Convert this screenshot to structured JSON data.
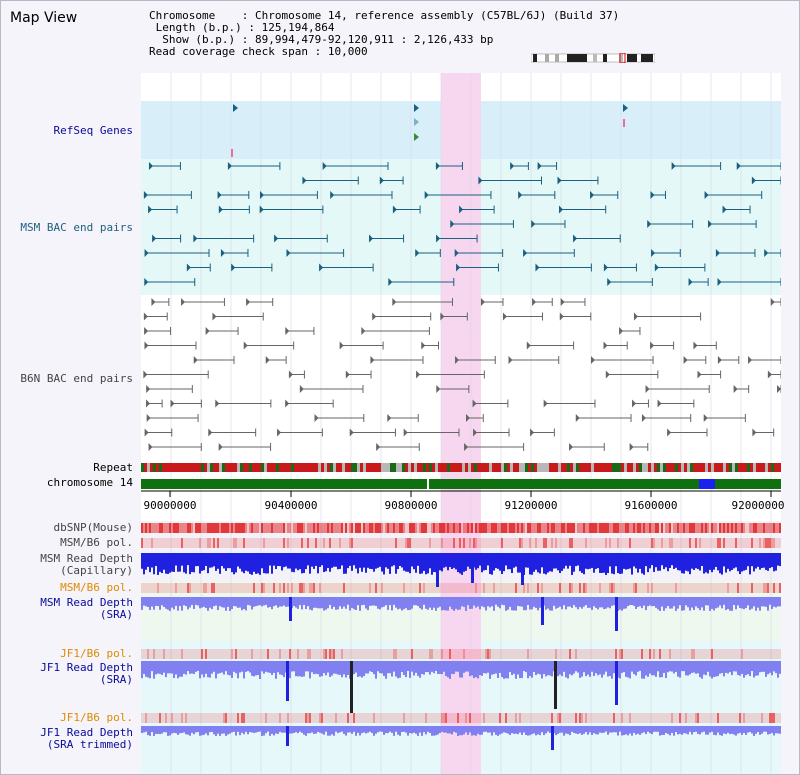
{
  "view_title": "Map View",
  "info": {
    "chromosome_key": "Chromosome",
    "chromosome_val": "Chromosome 14, reference assembly (C57BL/6J) (Build 37)",
    "length_key": "Length (b.p.)",
    "length_val": "125,194,864",
    "show_key": "Show (b.p.)",
    "show_val": "89,994,479-92,120,911 : 2,126,433 bp",
    "coverage_key": "Read coverage check span",
    "coverage_val": "10,000"
  },
  "tracks": {
    "refseq": "RefSeq Genes",
    "msm_bac": "MSM BAC end pairs",
    "b6n_bac": "B6N BAC end pairs",
    "repeat": "Repeat",
    "chromosome": "chromosome 14",
    "dbsnp": "dbSNP(Mouse)",
    "msm_b6_pol_1": "MSM/B6 pol.",
    "msm_read_depth_cap_1": "MSM Read Depth",
    "msm_read_depth_cap_2": "(Capillary)",
    "msm_b6_pol_2": "MSM/B6 pol.",
    "msm_read_depth_sra_1": "MSM Read Depth",
    "msm_read_depth_sra_2": "(SRA)",
    "jf1_b6_pol_1": "JF1/B6 pol.",
    "jf1_read_depth_sra_1": "JF1 Read Depth",
    "jf1_read_depth_sra_2": "(SRA)",
    "jf1_b6_pol_2": "JF1/B6 pol.",
    "jf1_read_depth_trim_1": "JF1 Read Depth",
    "jf1_read_depth_trim_2": "(SRA trimmed)"
  },
  "axis": {
    "ticks": [
      "90000000",
      "90400000",
      "90800000",
      "91200000",
      "91600000",
      "92000000"
    ]
  },
  "colors": {
    "highlight": "#f7d6ef",
    "refseq_bg": "#d8effa",
    "bac_bg": "#e4f8f8",
    "msm_line": "#1a6080",
    "b6n_line": "#666666",
    "chromosome_bar": "#107010",
    "depth_blue": "#2020e0",
    "depth_light": "#8080f0"
  }
}
